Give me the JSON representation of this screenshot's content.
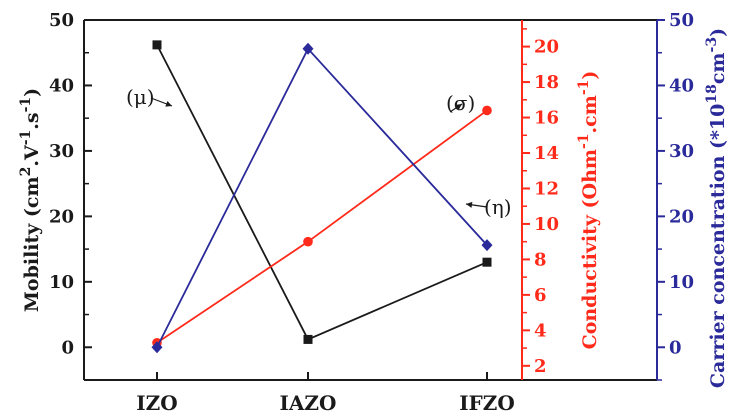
{
  "chart_data": {
    "type": "line",
    "categories": [
      "IZO",
      "IAZO",
      "IFZO"
    ],
    "series": [
      {
        "name": "(μ)",
        "axis": "left",
        "color": "#1a1a1a",
        "marker": "square",
        "values": [
          46.2,
          1.2,
          13.0
        ]
      },
      {
        "name": "(σ)",
        "axis": "middle",
        "color": "#ff2a1a",
        "marker": "circle",
        "values": [
          3.3,
          9.0,
          16.4
        ]
      },
      {
        "name": "(η)",
        "axis": "right",
        "color": "#2a2a9a",
        "marker": "diamond",
        "values": [
          0,
          45.6,
          15.6
        ]
      }
    ],
    "axes": {
      "left": {
        "label_parts": [
          "Mobility (cm",
          "2",
          ".V",
          "-1",
          ".s",
          "-1",
          ")"
        ],
        "ylim": [
          -5,
          50
        ],
        "ticks": [
          "0",
          "10",
          "20",
          "30",
          "40",
          "50"
        ],
        "color": "#1a1a1a"
      },
      "middle": {
        "label_parts": [
          "Conductivity (Ohm",
          "-1",
          ".cm",
          "-1",
          ")"
        ],
        "ylim": [
          1.2,
          21.5
        ],
        "ticks": [
          "2",
          "4",
          "6",
          "8",
          "10",
          "12",
          "14",
          "16",
          "18",
          "20"
        ],
        "color": "#ff2a1a"
      },
      "right": {
        "label_parts": [
          "Carrier concentration (*10",
          "18",
          "cm",
          "-3",
          ")"
        ],
        "ylim": [
          -5,
          50
        ],
        "ticks": [
          "0",
          "10",
          "20",
          "30",
          "40",
          "50"
        ],
        "color": "#2a2a9a"
      }
    },
    "annotations": [
      "(μ)",
      "(σ)",
      "(η)"
    ],
    "grid": false
  }
}
